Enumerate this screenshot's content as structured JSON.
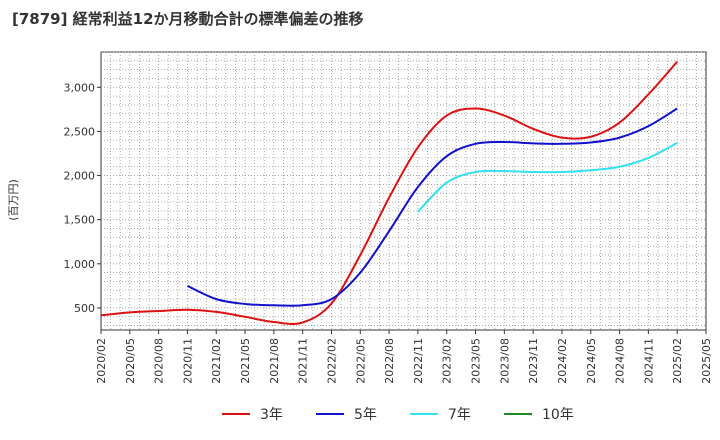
{
  "chart_data": {
    "type": "line",
    "title": "[7879]  経常利益12か月移動合計の標準偏差の推移",
    "ylabel": "(百万円)",
    "xlabel": "",
    "x_ticks": [
      "2020/02",
      "2020/05",
      "2020/08",
      "2020/11",
      "2021/02",
      "2021/05",
      "2021/08",
      "2021/11",
      "2022/02",
      "2022/05",
      "2022/08",
      "2022/11",
      "2023/02",
      "2023/05",
      "2023/08",
      "2023/11",
      "2024/02",
      "2024/05",
      "2024/08",
      "2024/11",
      "2025/02",
      "2025/05"
    ],
    "y_ticks": [
      500,
      1000,
      1500,
      2000,
      2500,
      3000
    ],
    "y_tick_labels": [
      "500",
      "1,000",
      "1,500",
      "2,000",
      "2,500",
      "3,000"
    ],
    "ylim": [
      250,
      3400
    ],
    "grid": true,
    "legend_position": "bottom",
    "series": [
      {
        "name": "3年",
        "color": "#dd1111",
        "x": [
          "2020/02",
          "2020/05",
          "2020/08",
          "2020/11",
          "2021/02",
          "2021/05",
          "2021/08",
          "2021/11",
          "2022/02",
          "2022/05",
          "2022/08",
          "2022/11",
          "2023/02",
          "2023/05",
          "2023/08",
          "2023/11",
          "2024/02",
          "2024/05",
          "2024/08",
          "2024/11",
          "2025/02"
        ],
        "values": [
          415,
          450,
          465,
          480,
          455,
          400,
          340,
          335,
          550,
          1100,
          1750,
          2320,
          2680,
          2760,
          2680,
          2530,
          2430,
          2440,
          2600,
          2920,
          3290
        ]
      },
      {
        "name": "5年",
        "color": "#1111cc",
        "x": [
          "2020/11",
          "2021/02",
          "2021/05",
          "2021/08",
          "2021/11",
          "2022/02",
          "2022/05",
          "2022/08",
          "2022/11",
          "2023/02",
          "2023/05",
          "2023/08",
          "2023/11",
          "2024/02",
          "2024/05",
          "2024/08",
          "2024/11",
          "2025/02"
        ],
        "values": [
          750,
          600,
          545,
          530,
          530,
          600,
          900,
          1370,
          1870,
          2220,
          2360,
          2380,
          2365,
          2360,
          2375,
          2430,
          2560,
          2760
        ]
      },
      {
        "name": "7年",
        "color": "#33e0f0",
        "x": [
          "2022/11",
          "2023/02",
          "2023/05",
          "2023/08",
          "2023/11",
          "2024/02",
          "2024/05",
          "2024/08",
          "2024/11",
          "2025/02"
        ],
        "values": [
          1590,
          1920,
          2040,
          2050,
          2040,
          2040,
          2060,
          2100,
          2200,
          2370
        ]
      },
      {
        "name": "10年",
        "color": "#228822",
        "x": [],
        "values": []
      }
    ]
  }
}
